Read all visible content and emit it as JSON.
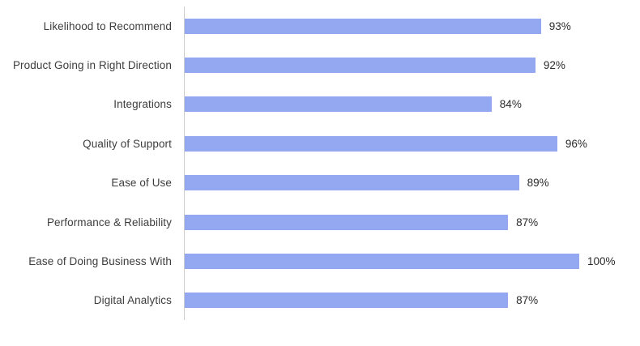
{
  "chart_data": {
    "type": "bar",
    "orientation": "horizontal",
    "title": "",
    "xlabel": "",
    "ylabel": "",
    "categories": [
      "Likelihood to Recommend",
      "Product Going in Right Direction",
      "Integrations",
      "Quality of Support",
      "Ease of Use",
      "Performance & Reliability",
      "Ease of Doing Business With",
      "Digital Analytics"
    ],
    "values": [
      93,
      92,
      84,
      96,
      89,
      87,
      100,
      87
    ],
    "value_labels": [
      "93%",
      "92%",
      "84%",
      "96%",
      "89%",
      "87%",
      "100%",
      "87%"
    ],
    "xlim": [
      28,
      100
    ],
    "grid": false,
    "legend": false,
    "bar_color": "#93a8f1",
    "axis_line_color": "#cccccc",
    "label_color": "#3d3d3d",
    "value_color": "#2b2b2b",
    "background_color": "#ffffff"
  }
}
